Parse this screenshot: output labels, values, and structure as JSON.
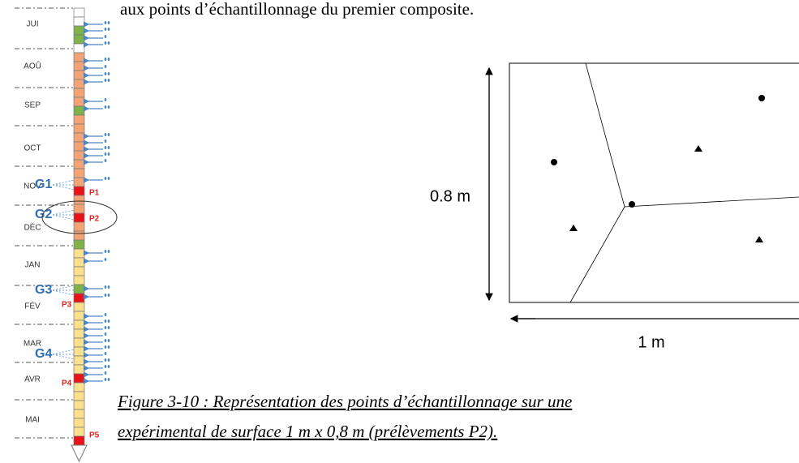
{
  "text_top": "aux points d’échantillonnage du premier composite.",
  "timeline": {
    "months": [
      "JUI",
      "AOÛ",
      "SEP",
      "OCT",
      "NOV",
      "DÉC",
      "JAN",
      "FÉV",
      "MAR",
      "AVR",
      "MAI"
    ],
    "groups": [
      "G1",
      "G2",
      "G3",
      "G4"
    ],
    "samples": [
      "P1",
      "P2",
      "P3",
      "P4",
      "P5"
    ]
  },
  "figure": {
    "height_label": "0.8 m",
    "width_label": "1 m",
    "caption": [
      "Figure 3-10 : Représentation des points d’échantillonnage sur une",
      "expérimental de surface 1 m x 0,8 m (prélèvements P2)."
    ]
  }
}
